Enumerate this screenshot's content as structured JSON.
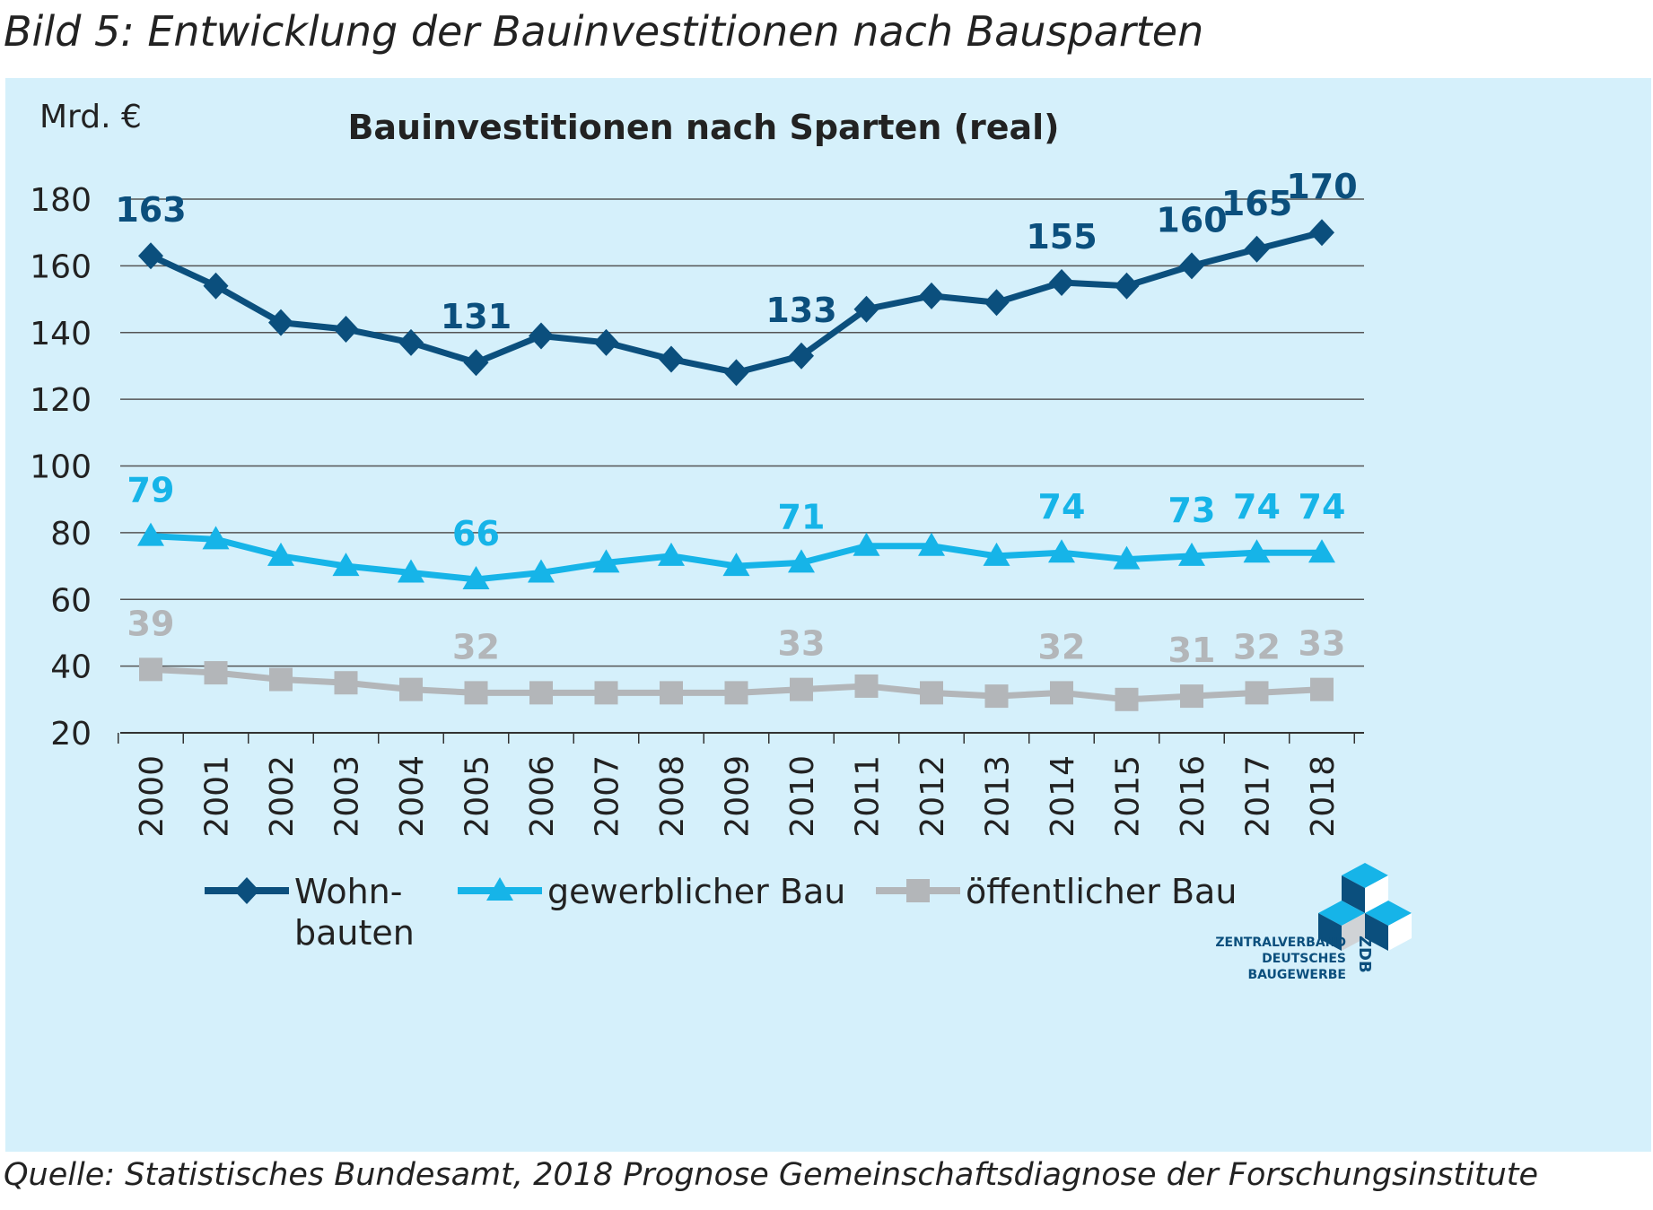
{
  "figure_caption": "Bild 5: Entwicklung der Bauinvestitionen nach Bausparten",
  "source": "Quelle: Statistisches Bundesamt, 2018 Prognose Gemeinschaftsdiagnose der Forschungsinstitute",
  "logo": {
    "lines": [
      "ZENTRALVERBAND",
      "DEUTSCHES",
      "BAUGEWERBE"
    ],
    "side": "ZDB"
  },
  "colors": {
    "panel_bg": "#d5f0fb",
    "wohnbauten": "#0b4f7d",
    "gewerblich": "#16b4e8",
    "oeffentlich": "#b3b6b9"
  },
  "chart_data": {
    "type": "line",
    "title": "Bauinvestitionen nach Sparten (real)",
    "ylabel": "Mrd. €",
    "ylim": [
      20,
      180
    ],
    "yticks": [
      20,
      40,
      60,
      80,
      100,
      120,
      140,
      160,
      180
    ],
    "grid": true,
    "legend_position": "bottom",
    "categories": [
      "2000",
      "2001",
      "2002",
      "2003",
      "2004",
      "2005",
      "2006",
      "2007",
      "2008",
      "2009",
      "2010",
      "2011",
      "2012",
      "2013",
      "2014",
      "2015",
      "2016",
      "2017",
      "2018"
    ],
    "series": [
      {
        "name": "Wohnbauten",
        "legend_lines": [
          "Wohn-",
          "bauten"
        ],
        "marker": "diamond",
        "color": "#0b4f7d",
        "values": [
          163,
          154,
          143,
          141,
          137,
          131,
          139,
          137,
          132,
          128,
          133,
          147,
          151,
          149,
          155,
          154,
          160,
          165,
          170
        ],
        "labels": [
          {
            "i": 0,
            "text": "163"
          },
          {
            "i": 5,
            "text": "131"
          },
          {
            "i": 10,
            "text": "133"
          },
          {
            "i": 14,
            "text": "155"
          },
          {
            "i": 16,
            "text": "160"
          },
          {
            "i": 17,
            "text": "165"
          },
          {
            "i": 18,
            "text": "170"
          }
        ]
      },
      {
        "name": "gewerblicher Bau",
        "legend_lines": [
          "gewerblicher Bau"
        ],
        "marker": "triangle",
        "color": "#16b4e8",
        "values": [
          79,
          78,
          73,
          70,
          68,
          66,
          68,
          71,
          73,
          70,
          71,
          76,
          76,
          73,
          74,
          72,
          73,
          74,
          74
        ],
        "labels": [
          {
            "i": 0,
            "text": "79"
          },
          {
            "i": 5,
            "text": "66"
          },
          {
            "i": 10,
            "text": "71"
          },
          {
            "i": 14,
            "text": "74"
          },
          {
            "i": 16,
            "text": "73"
          },
          {
            "i": 17,
            "text": "74"
          },
          {
            "i": 18,
            "text": "74"
          }
        ]
      },
      {
        "name": "öffentlicher Bau",
        "legend_lines": [
          "öffentlicher Bau"
        ],
        "marker": "square",
        "color": "#b3b6b9",
        "values": [
          39,
          38,
          36,
          35,
          33,
          32,
          32,
          32,
          32,
          32,
          33,
          34,
          32,
          31,
          32,
          30,
          31,
          32,
          33
        ],
        "labels": [
          {
            "i": 0,
            "text": "39"
          },
          {
            "i": 5,
            "text": "32"
          },
          {
            "i": 10,
            "text": "33"
          },
          {
            "i": 14,
            "text": "32"
          },
          {
            "i": 16,
            "text": "31"
          },
          {
            "i": 17,
            "text": "32"
          },
          {
            "i": 18,
            "text": "33"
          }
        ]
      }
    ]
  }
}
